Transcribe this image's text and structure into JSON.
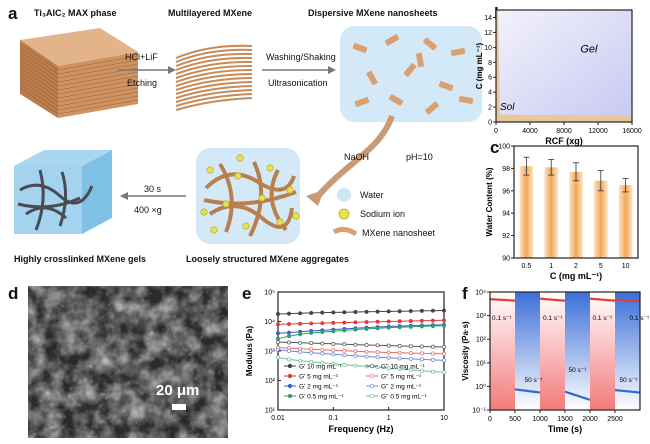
{
  "panel_a": {
    "label": "a",
    "max_phase_title": "Ti₃AlC₂ MAX phase",
    "multilayer_title": "Multilayered MXene",
    "dispersive_title": "Dispersive MXene nanosheets",
    "step1_top": "HCl+LiF",
    "step1_bottom": "Etching",
    "step2_top": "Washing/Shaking",
    "step2_bottom": "Ultrasonication",
    "naoh": "NaOH",
    "ph": "pH=10",
    "step3_top": "30 s",
    "step3_bottom": "400 ×g",
    "legend_water": "Water",
    "legend_sodium": "Sodium ion",
    "legend_nanosheet": "MXene nanosheet",
    "aggregates_title": "Loosely structured MXene aggregates",
    "gels_title": "Highly crosslinked MXene gels",
    "colors": {
      "water": "#cfe6f5",
      "sheet": "#d9a072",
      "sodium": "#e9e04a"
    }
  },
  "panel_d": {
    "label": "d",
    "scale_bar": "20 μm"
  },
  "chart_data": [
    {
      "panel": "b",
      "type": "area",
      "xlabel": "RCF (xg)",
      "ylabel": "C (mg mL⁻¹)",
      "xlim": [
        0,
        16000
      ],
      "ylim": [
        0,
        15
      ],
      "xticks": [
        "0",
        "4000",
        "8000",
        "12000",
        "16000"
      ],
      "yticks": [
        "0",
        "2",
        "4",
        "6",
        "8",
        "10",
        "12",
        "14"
      ],
      "regions": [
        {
          "name": "Gel",
          "color": "#c7c8f2"
        },
        {
          "name": "Sol",
          "color": "#e8c79a"
        }
      ]
    },
    {
      "panel": "c",
      "type": "bar",
      "xlabel": "C (mg mL⁻¹)",
      "ylabel": "Water Content (%)",
      "categories": [
        "0.5",
        "1",
        "2",
        "5",
        "10"
      ],
      "values": [
        98.2,
        98.1,
        97.7,
        96.9,
        96.5
      ],
      "errors": [
        0.8,
        0.7,
        0.8,
        0.9,
        0.6
      ],
      "ylim": [
        90,
        100
      ],
      "yticks": [
        "90",
        "92",
        "94",
        "96",
        "98",
        "100"
      ],
      "color": "#f2a85a"
    },
    {
      "panel": "e",
      "type": "line",
      "xlabel": "Frequency (Hz)",
      "ylabel": "Modulus (Pa)",
      "xscale": "log",
      "yscale": "log",
      "xlim": [
        0.01,
        10
      ],
      "ylim": [
        10,
        100000
      ],
      "xticks": [
        "0.01",
        "0.1",
        "1",
        "10"
      ],
      "yticks": [
        "10¹",
        "10²",
        "10³",
        "10⁴",
        "10⁵"
      ],
      "x": [
        0.01,
        0.0158,
        0.0251,
        0.0398,
        0.0631,
        0.1,
        0.158,
        0.251,
        0.398,
        0.631,
        1,
        1.58,
        2.51,
        3.98,
        6.31,
        10
      ],
      "series": [
        {
          "name": "G' 10 mg mL⁻¹",
          "color": "#444444",
          "dash": false,
          "values": [
            18000,
            18500,
            19000,
            19500,
            20000,
            20300,
            20600,
            21000,
            21300,
            21600,
            22000,
            22300,
            22600,
            23000,
            23300,
            23600
          ]
        },
        {
          "name": "G' 5 mg mL⁻¹",
          "color": "#e03a3a",
          "dash": false,
          "values": [
            8000,
            8200,
            8400,
            8600,
            8800,
            9000,
            9200,
            9400,
            9600,
            9800,
            10000,
            10200,
            10400,
            10600,
            10800,
            11000
          ]
        },
        {
          "name": "G' 2 mg mL⁻¹",
          "color": "#3a5fd0",
          "dash": false,
          "values": [
            4000,
            4200,
            4500,
            4800,
            5000,
            5300,
            5600,
            5900,
            6200,
            6500,
            6800,
            7000,
            7200,
            7400,
            7600,
            7800
          ]
        },
        {
          "name": "G' 0.5 mg mL⁻¹",
          "color": "#2e9e6b",
          "dash": false,
          "values": [
            2600,
            3200,
            3700,
            4100,
            4400,
            4700,
            5000,
            5300,
            5600,
            5900,
            6200,
            6400,
            6600,
            6800,
            7000,
            7200
          ]
        },
        {
          "name": "G'' 10 mg mL⁻¹",
          "color": "#555555",
          "dash": true,
          "values": [
            2000,
            1950,
            1900,
            1850,
            1800,
            1750,
            1700,
            1650,
            1600,
            1560,
            1520,
            1480,
            1450,
            1420,
            1400,
            1380
          ]
        },
        {
          "name": "G'' 5 mg mL⁻¹",
          "color": "#e66a6a",
          "dash": true,
          "values": [
            1300,
            1250,
            1200,
            1150,
            1100,
            1060,
            1020,
            980,
            950,
            920,
            890,
            870,
            850,
            830,
            820,
            810
          ]
        },
        {
          "name": "G'' 2 mg mL⁻¹",
          "color": "#6a8ae0",
          "dash": true,
          "values": [
            1100,
            1000,
            930,
            870,
            820,
            770,
            730,
            690,
            650,
            620,
            590,
            560,
            540,
            520,
            500,
            480
          ]
        },
        {
          "name": "G'' 0.5 mg mL⁻¹",
          "color": "#6cc19a",
          "dash": true,
          "values": [
            600,
            520,
            470,
            430,
            400,
            370,
            340,
            320,
            300,
            280,
            260,
            245,
            230,
            215,
            200,
            190
          ]
        }
      ]
    },
    {
      "panel": "f",
      "type": "line",
      "xlabel": "Time (s)",
      "ylabel": "Viscosity (Pa·s)",
      "yscale": "log",
      "xlim": [
        0,
        3000
      ],
      "ylim": [
        0.1,
        10000
      ],
      "xticks": [
        "0",
        "500",
        "1000",
        "1500",
        "2000",
        "2500"
      ],
      "yticks": [
        "10⁻¹",
        "10⁰",
        "10¹",
        "10²",
        "10³",
        "10⁴"
      ],
      "annotations": [
        "0.1 s⁻¹",
        "50 s⁻¹",
        "0.1 s⁻¹",
        "50 s⁻¹",
        "0.1 s⁻¹",
        "50 s⁻¹",
        "0.1 s⁻¹"
      ],
      "segments": [
        {
          "rate": "0.1 s⁻¹",
          "x": [
            0,
            500
          ],
          "values": [
            5000,
            4300
          ],
          "color": "#e23b3b"
        },
        {
          "rate": "50 s⁻¹",
          "x": [
            500,
            1000
          ],
          "values": [
            0.75,
            0.55
          ],
          "color": "#2f68d8"
        },
        {
          "rate": "0.1 s⁻¹",
          "x": [
            1000,
            1500
          ],
          "values": [
            5200,
            4300
          ],
          "color": "#e23b3b"
        },
        {
          "rate": "50 s⁻¹",
          "x": [
            1500,
            2000
          ],
          "values": [
            0.6,
            0.27
          ],
          "color": "#2f68d8"
        },
        {
          "rate": "0.1 s⁻¹",
          "x": [
            2000,
            2500
          ],
          "values": [
            5200,
            4300
          ],
          "color": "#e23b3b"
        },
        {
          "rate": "50 s⁻¹",
          "x": [
            2500,
            3000
          ],
          "values": [
            0.7,
            0.55
          ],
          "color": "#2f68d8"
        },
        {
          "rate": "0.1 s⁻¹",
          "x": [
            2500,
            3000
          ],
          "values": [
            4800,
            4000
          ],
          "color": "#e23b3b"
        }
      ]
    }
  ]
}
